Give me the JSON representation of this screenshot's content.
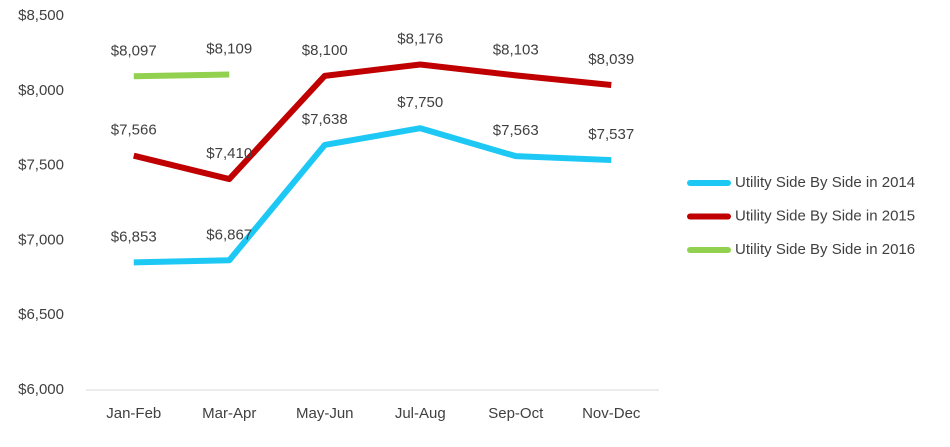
{
  "chart_data": {
    "type": "line",
    "categories": [
      "Jan-Feb",
      "Mar-Apr",
      "May-Jun",
      "Jul-Aug",
      "Sep-Oct",
      "Nov-Dec"
    ],
    "series": [
      {
        "name": "Utility Side By Side in 2014",
        "color": "#1ec8f5",
        "values": [
          6853,
          6867,
          7638,
          7750,
          7563,
          7537
        ],
        "value_labels": [
          "$6,853",
          "$6,867",
          "$7,638",
          "$7,750",
          "$7,563",
          "$7,537"
        ]
      },
      {
        "name": "Utility Side By Side in 2015",
        "color": "#c00000",
        "values": [
          7566,
          7410,
          8100,
          8176,
          8103,
          8039
        ],
        "value_labels": [
          "$7,566",
          "$7,410",
          "$8,100",
          "$8,176",
          "$8,103",
          "$8,039"
        ]
      },
      {
        "name": "Utility Side By Side in 2016",
        "color": "#92d050",
        "values": [
          8097,
          8109,
          null,
          null,
          null,
          null
        ],
        "value_labels": [
          "$8,097",
          "$8,109",
          null,
          null,
          null,
          null
        ]
      }
    ],
    "ylim": [
      6000,
      8500
    ],
    "yticks": [
      {
        "value": 6000,
        "label": "$6,000"
      },
      {
        "value": 6500,
        "label": "$6,500"
      },
      {
        "value": 7000,
        "label": "$7,000"
      },
      {
        "value": 7500,
        "label": "$7,500"
      },
      {
        "value": 8000,
        "label": "$8,000"
      },
      {
        "value": 8500,
        "label": "$8,500"
      }
    ],
    "grid": false,
    "legend": "right"
  }
}
